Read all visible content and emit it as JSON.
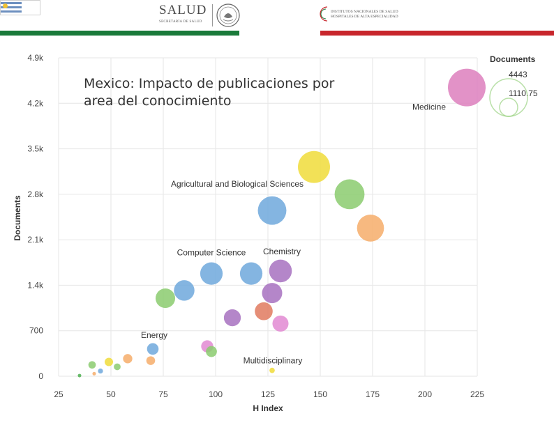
{
  "header": {
    "salud_text": "SALUD",
    "salud_subtext": "SECRETARÍA DE SALUD",
    "institute_line1": "INSTITUTOS NACIONALES DE SALUD",
    "institute_line2": "HOSPITALES DE ALTA ESPECIALIDAD",
    "colors": {
      "green_bar": "#1a7a3a",
      "red_bar": "#c8262c"
    }
  },
  "chart_data": {
    "type": "scatter",
    "title": "Mexico: Impacto de publicaciones por area del conocimiento",
    "xlabel": "H Index",
    "ylabel": "Documents",
    "xlim": [
      25,
      225
    ],
    "ylim": [
      0,
      4900
    ],
    "x_ticks": [
      25,
      50,
      75,
      100,
      125,
      150,
      175,
      200,
      225
    ],
    "y_ticks": [
      {
        "value": 0,
        "label": "0"
      },
      {
        "value": 700,
        "label": "700"
      },
      {
        "value": 1400,
        "label": "1.4k"
      },
      {
        "value": 2100,
        "label": "2.1k"
      },
      {
        "value": 2800,
        "label": "2.8k"
      },
      {
        "value": 3500,
        "label": "3.5k"
      },
      {
        "value": 4200,
        "label": "4.2k"
      },
      {
        "value": 4900,
        "label": "4.9k"
      }
    ],
    "size_legend": {
      "title": "Documents",
      "max_value": "4443",
      "min_value": "1110.75"
    },
    "points": [
      {
        "x": 220,
        "y": 4443,
        "size": 4443,
        "color": "#dd7fbd",
        "label": "Medicine"
      },
      {
        "x": 147,
        "y": 3220,
        "size": 3220,
        "color": "#f0dc3a"
      },
      {
        "x": 164,
        "y": 2800,
        "size": 2800,
        "color": "#8bcb6e"
      },
      {
        "x": 127,
        "y": 2550,
        "size": 2550,
        "color": "#6fa8dc",
        "label": "Agricultural and Biological Sciences"
      },
      {
        "x": 174,
        "y": 2280,
        "size": 2280,
        "color": "#f6ad6a"
      },
      {
        "x": 131,
        "y": 1620,
        "size": 1620,
        "color": "#a771c0",
        "label": "Chemistry"
      },
      {
        "x": 98,
        "y": 1580,
        "size": 1580,
        "color": "#6fa8dc",
        "label": "Computer Science"
      },
      {
        "x": 117,
        "y": 1580,
        "size": 1580,
        "color": "#6fa8dc"
      },
      {
        "x": 85,
        "y": 1320,
        "size": 1320,
        "color": "#6fa8dc"
      },
      {
        "x": 127,
        "y": 1280,
        "size": 1280,
        "color": "#a771c0"
      },
      {
        "x": 76,
        "y": 1200,
        "size": 1200,
        "color": "#8bcb6e"
      },
      {
        "x": 123,
        "y": 1000,
        "size": 1000,
        "color": "#e07a5f"
      },
      {
        "x": 108,
        "y": 900,
        "size": 900,
        "color": "#a771c0"
      },
      {
        "x": 131,
        "y": 810,
        "size": 810,
        "color": "#e28ad2"
      },
      {
        "x": 70,
        "y": 420,
        "size": 420,
        "color": "#6fa8dc",
        "label": "Energy"
      },
      {
        "x": 96,
        "y": 460,
        "size": 460,
        "color": "#e28ad2"
      },
      {
        "x": 98,
        "y": 380,
        "size": 380,
        "color": "#8bcb6e"
      },
      {
        "x": 58,
        "y": 270,
        "size": 270,
        "color": "#f6ad6a"
      },
      {
        "x": 69,
        "y": 240,
        "size": 240,
        "color": "#f6ad6a"
      },
      {
        "x": 49,
        "y": 220,
        "size": 220,
        "color": "#f0dc3a"
      },
      {
        "x": 41,
        "y": 175,
        "size": 175,
        "color": "#8bcb6e"
      },
      {
        "x": 53,
        "y": 145,
        "size": 145,
        "color": "#8bcb6e"
      },
      {
        "x": 45,
        "y": 80,
        "size": 80,
        "color": "#6fa8dc"
      },
      {
        "x": 42,
        "y": 40,
        "size": 40,
        "color": "#f6ad6a"
      },
      {
        "x": 127,
        "y": 90,
        "size": 90,
        "color": "#f0dc3a",
        "label": "Multidisciplinary"
      },
      {
        "x": 35,
        "y": 10,
        "size": 10,
        "color": "#4caf50"
      }
    ]
  }
}
